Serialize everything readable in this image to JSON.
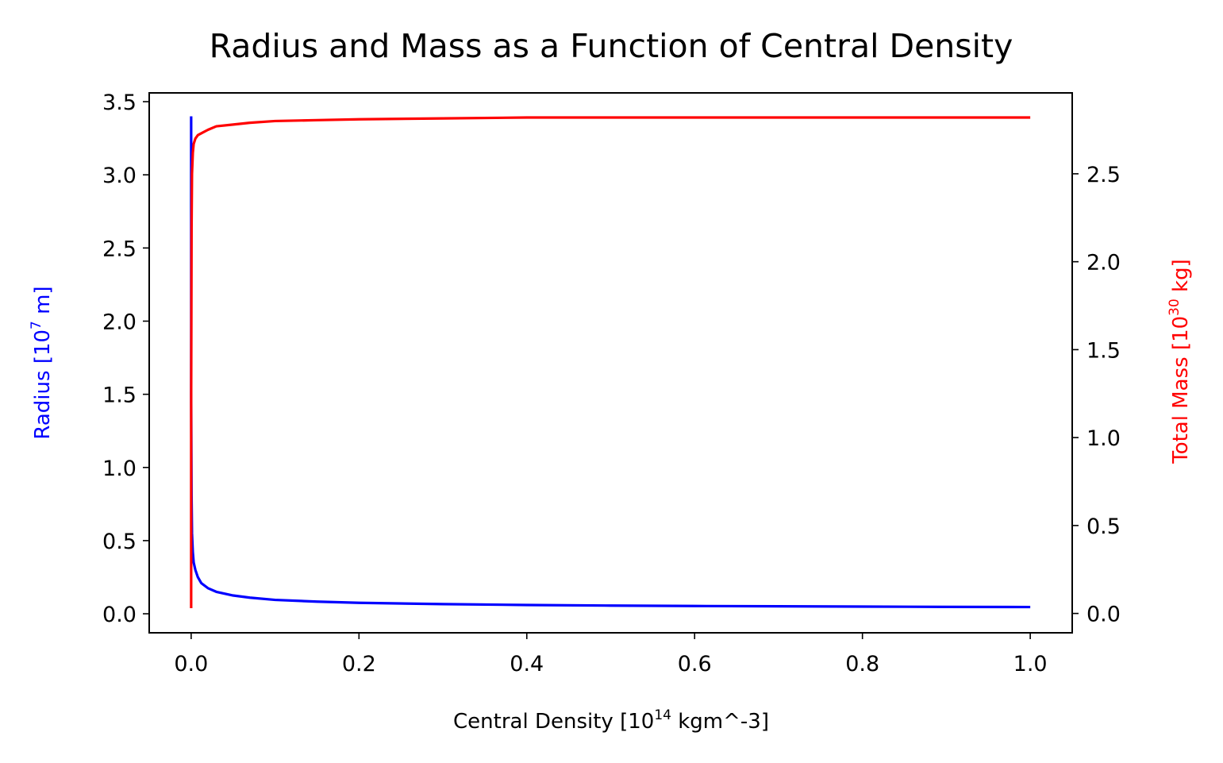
{
  "chart_data": {
    "type": "line",
    "title": "Radius and Mass as a Function of Central Density",
    "xlabel": {
      "pre": "Central Density  [10",
      "sup": "14",
      "post": " kgm^-3]"
    },
    "ylabel_left": {
      "pre": "Radius  [10",
      "sup": "7",
      "post": " m]",
      "color": "#0000ff"
    },
    "ylabel_right": {
      "pre": "Total Mass  [10",
      "sup": "30",
      "post": " kg]",
      "color": "#ff0000"
    },
    "xlim": [
      -0.05,
      1.05
    ],
    "ylim_left": [
      -0.13,
      3.56
    ],
    "ylim_right": [
      -0.11,
      2.96
    ],
    "x_ticks": [
      "0.0",
      "0.2",
      "0.4",
      "0.6",
      "0.8",
      "1.0"
    ],
    "y_left_ticks": [
      "0.0",
      "0.5",
      "1.0",
      "1.5",
      "2.0",
      "2.5",
      "3.0",
      "3.5"
    ],
    "y_right_ticks": [
      "0.0",
      "0.5",
      "1.0",
      "1.5",
      "2.0",
      "2.5"
    ],
    "grid": false,
    "series": [
      {
        "axis": "left",
        "color": "#0000ff",
        "x": [
          0.0,
          0.0,
          0.0005,
          0.001,
          0.002,
          0.003,
          0.005,
          0.008,
          0.012,
          0.02,
          0.03,
          0.05,
          0.07,
          0.1,
          0.15,
          0.2,
          0.3,
          0.4,
          0.5,
          0.6,
          0.7,
          0.8,
          0.9,
          1.0
        ],
        "values": [
          3.4,
          1.5,
          0.8,
          0.55,
          0.42,
          0.35,
          0.3,
          0.25,
          0.21,
          0.175,
          0.15,
          0.125,
          0.11,
          0.095,
          0.083,
          0.075,
          0.066,
          0.06,
          0.056,
          0.053,
          0.051,
          0.049,
          0.047,
          0.046
        ]
      },
      {
        "axis": "right",
        "color": "#ff0000",
        "x": [
          0.0,
          0.0,
          0.0005,
          0.001,
          0.002,
          0.003,
          0.005,
          0.008,
          0.012,
          0.02,
          0.03,
          0.05,
          0.07,
          0.1,
          0.15,
          0.2,
          0.3,
          0.4,
          0.5,
          0.6,
          0.7,
          0.8,
          0.9,
          0.95,
          1.0
        ],
        "values": [
          0.03,
          1.2,
          2.2,
          2.5,
          2.62,
          2.67,
          2.7,
          2.72,
          2.73,
          2.75,
          2.77,
          2.78,
          2.79,
          2.8,
          2.805,
          2.81,
          2.815,
          2.82,
          2.82,
          2.82,
          2.82,
          2.82,
          2.82,
          2.82,
          2.82
        ]
      }
    ]
  }
}
